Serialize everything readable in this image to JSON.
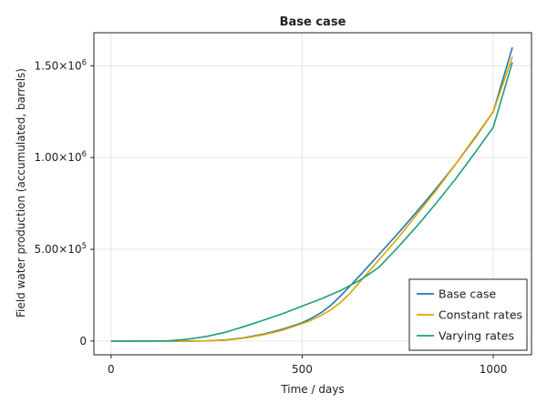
{
  "chart_data": {
    "type": "line",
    "title": "Base case",
    "xlabel": "Time / days",
    "ylabel": "Field water production (accumulated, barrels)",
    "xlim": [
      -45,
      1100
    ],
    "ylim": [
      -75000,
      1680000
    ],
    "grid": true,
    "legend_position": "bottom-right",
    "x_ticks": [
      0,
      500,
      1000
    ],
    "x_tick_labels": [
      "0",
      "500",
      "1000"
    ],
    "y_ticks": [
      0,
      500000,
      1000000,
      1500000
    ],
    "y_tick_labels": [
      {
        "mantissa": "0",
        "exp": ""
      },
      {
        "mantissa": "5.00×10",
        "exp": "5"
      },
      {
        "mantissa": "1.00×10",
        "exp": "6"
      },
      {
        "mantissa": "1.50×10",
        "exp": "6"
      }
    ],
    "series": [
      {
        "name": "Base case",
        "color": "#1f77b4",
        "points": [
          [
            0,
            0
          ],
          [
            150,
            0
          ],
          [
            200,
            0
          ],
          [
            250,
            1000
          ],
          [
            300,
            6000
          ],
          [
            350,
            18000
          ],
          [
            400,
            38000
          ],
          [
            450,
            65000
          ],
          [
            500,
            100000
          ],
          [
            525,
            125000
          ],
          [
            550,
            155000
          ],
          [
            575,
            195000
          ],
          [
            600,
            245000
          ],
          [
            625,
            300000
          ],
          [
            650,
            355000
          ],
          [
            700,
            470000
          ],
          [
            750,
            585000
          ],
          [
            800,
            705000
          ],
          [
            850,
            830000
          ],
          [
            900,
            960000
          ],
          [
            950,
            1100000
          ],
          [
            1000,
            1250000
          ],
          [
            1050,
            1600000
          ]
        ]
      },
      {
        "name": "Constant rates",
        "color": "#e0a500",
        "points": [
          [
            0,
            0
          ],
          [
            150,
            0
          ],
          [
            200,
            0
          ],
          [
            250,
            1000
          ],
          [
            300,
            5000
          ],
          [
            350,
            16000
          ],
          [
            400,
            35000
          ],
          [
            450,
            60000
          ],
          [
            500,
            95000
          ],
          [
            525,
            115000
          ],
          [
            550,
            140000
          ],
          [
            575,
            170000
          ],
          [
            600,
            210000
          ],
          [
            625,
            260000
          ],
          [
            650,
            320000
          ],
          [
            700,
            440000
          ],
          [
            750,
            560000
          ],
          [
            800,
            690000
          ],
          [
            850,
            820000
          ],
          [
            900,
            960000
          ],
          [
            950,
            1105000
          ],
          [
            1000,
            1250000
          ],
          [
            1050,
            1550000
          ]
        ]
      },
      {
        "name": "Varying rates",
        "color": "#19a07a",
        "points": [
          [
            0,
            0
          ],
          [
            150,
            1000
          ],
          [
            200,
            10000
          ],
          [
            250,
            25000
          ],
          [
            300,
            48000
          ],
          [
            350,
            80000
          ],
          [
            400,
            115000
          ],
          [
            450,
            150000
          ],
          [
            500,
            190000
          ],
          [
            550,
            230000
          ],
          [
            600,
            275000
          ],
          [
            650,
            330000
          ],
          [
            700,
            400000
          ],
          [
            750,
            510000
          ],
          [
            800,
            625000
          ],
          [
            850,
            750000
          ],
          [
            900,
            880000
          ],
          [
            950,
            1020000
          ],
          [
            1000,
            1165000
          ],
          [
            1050,
            1520000
          ]
        ]
      }
    ]
  }
}
